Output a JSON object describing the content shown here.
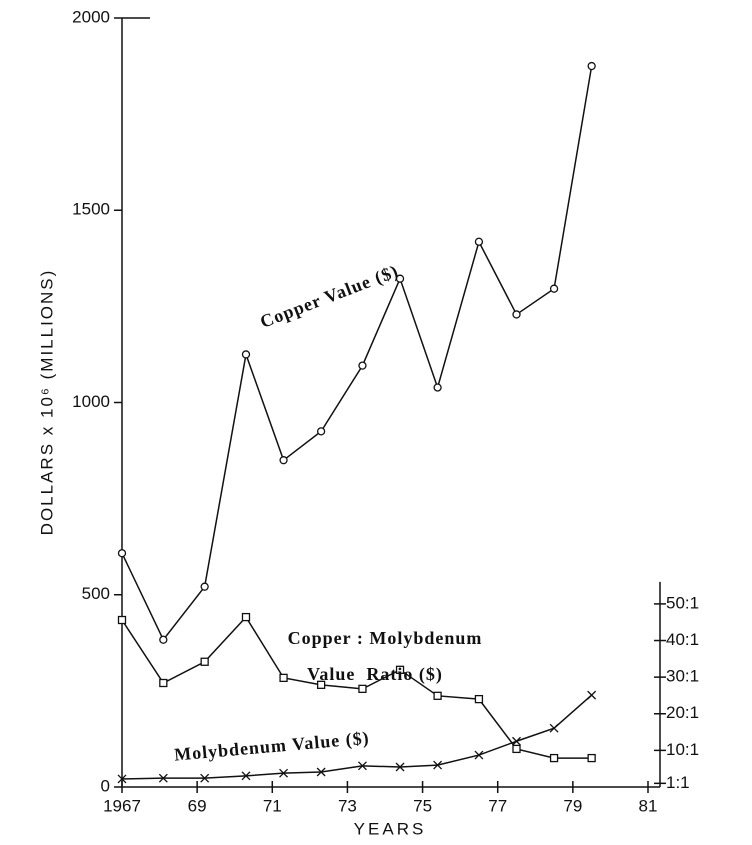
{
  "chart_data": {
    "type": "line",
    "ylabel": "DOLLARS x 10⁶ (MILLIONS)",
    "xlabel": "YEARS",
    "xlim": [
      1967,
      1981
    ],
    "xticks": [
      1967,
      {
        "value": 1969,
        "label": "69"
      },
      {
        "value": 1971,
        "label": "71"
      },
      {
        "value": 1973,
        "label": "73"
      },
      {
        "value": 1975,
        "label": "75"
      },
      {
        "value": 1977,
        "label": "77"
      },
      {
        "value": 1979,
        "label": "79"
      },
      {
        "value": 1981,
        "label": "81"
      }
    ],
    "ylim": [
      0,
      2000
    ],
    "yticks": [
      0,
      500,
      1000,
      1500,
      2000
    ],
    "y2lim": [
      0,
      210
    ],
    "y2ticks": [
      {
        "value": 1,
        "label": "1:1"
      },
      {
        "value": 10,
        "label": "10:1"
      },
      {
        "value": 20,
        "label": "20:1"
      },
      {
        "value": 30,
        "label": "30:1"
      },
      {
        "value": 40,
        "label": "40:1"
      },
      {
        "value": 50,
        "label": "50:1"
      }
    ],
    "grid": false,
    "x": [
      1967,
      1968.1,
      1969.2,
      1970.3,
      1971.3,
      1972.3,
      1973.4,
      1974.4,
      1975.4,
      1976.5,
      1977.5,
      1978.5,
      1979.5
    ],
    "series": [
      {
        "name": "Copper Value ($)",
        "color": "#111111",
        "marker": "circle",
        "values": [
          608,
          383,
          521,
          1125,
          850,
          925,
          1096,
          1322,
          1039,
          1418,
          1229,
          1296,
          1875
        ]
      },
      {
        "name": "Copper : Molybdenum Value Ratio ($)",
        "color": "#111111",
        "marker": "square",
        "axis": "y2",
        "values": [
          45.6,
          28.4,
          34.2,
          46.4,
          29.8,
          27.9,
          26.8,
          32.0,
          24.9,
          24.0,
          10.4,
          7.9,
          7.9
        ]
      },
      {
        "name": "Molybdenum Value ($)",
        "color": "#111111",
        "marker": "x",
        "values": [
          21,
          23,
          23,
          29,
          36,
          39,
          55,
          52,
          57,
          83,
          119,
          153,
          239
        ]
      }
    ],
    "annotations": [
      "Copper Value ($)",
      "Copper : Molybdenum",
      "Value  Ratio ($)",
      "Molybdenum Value ($)"
    ]
  }
}
